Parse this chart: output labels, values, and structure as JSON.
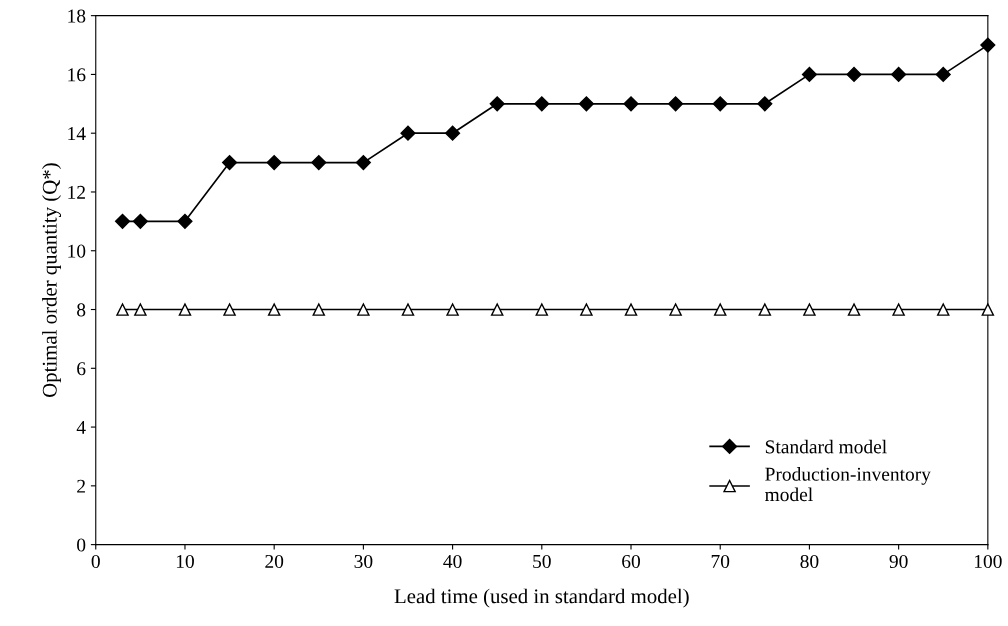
{
  "chart_data": {
    "type": "line",
    "xlabel": "Lead time (used in standard model)",
    "ylabel": "Optimal order quantity (Q*)",
    "x": [
      3,
      5,
      10,
      15,
      20,
      25,
      30,
      35,
      40,
      45,
      50,
      55,
      60,
      65,
      70,
      75,
      80,
      85,
      90,
      95,
      100
    ],
    "series": [
      {
        "name": "Standard model",
        "color": "#000000",
        "marker": "diamond",
        "values": [
          11,
          11,
          11,
          13,
          13,
          13,
          13,
          14,
          14,
          15,
          15,
          15,
          15,
          15,
          15,
          15,
          16,
          16,
          16,
          16,
          17
        ]
      },
      {
        "name": "Production-inventory\nmodel",
        "color": "#000000",
        "marker": "triangle",
        "values": [
          8,
          8,
          8,
          8,
          8,
          8,
          8,
          8,
          8,
          8,
          8,
          8,
          8,
          8,
          8,
          8,
          8,
          8,
          8,
          8,
          8
        ]
      }
    ],
    "xlim": [
      0,
      100
    ],
    "xticks": [
      0,
      10,
      20,
      30,
      40,
      50,
      60,
      70,
      80,
      90,
      100
    ],
    "ylim": [
      0,
      18
    ],
    "yticks": [
      0,
      2,
      4,
      6,
      8,
      10,
      12,
      14,
      16,
      18
    ],
    "grid": false,
    "legend": "bottom right",
    "line_style": "solid"
  }
}
